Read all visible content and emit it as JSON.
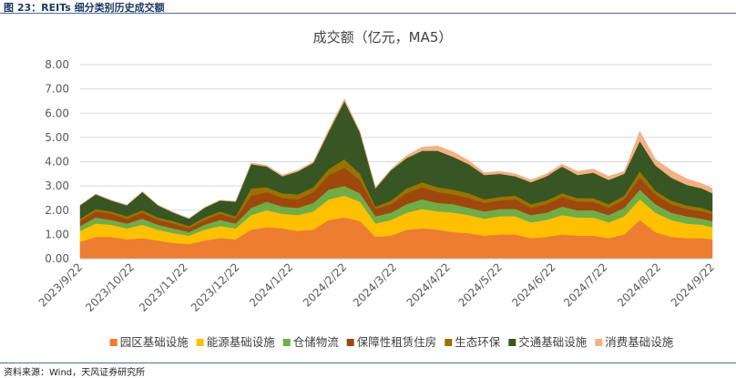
{
  "figure": {
    "caption": "图 23：REITs 细分类别历史成交额",
    "source": "资料来源：Wind，天风证券研究所"
  },
  "chart_data": {
    "type": "area",
    "stacked": true,
    "title": "成交额（亿元，MA5）",
    "xlabel": "",
    "ylabel": "",
    "ylim": [
      0,
      8
    ],
    "yticks": [
      "0.00",
      "1.00",
      "2.00",
      "3.00",
      "4.00",
      "5.00",
      "6.00",
      "7.00",
      "8.00"
    ],
    "grid": "horizontal",
    "legend": "bottom",
    "x_start": "2023/9/22",
    "x_end": "2024/9/22",
    "xtick_labels": [
      "2023/9/22",
      "2023/10/22",
      "2023/11/22",
      "2023/12/22",
      "2024/1/22",
      "2024/2/22",
      "2024/3/22",
      "2024/4/22",
      "2024/5/22",
      "2024/6/22",
      "2024/7/22",
      "2024/8/22",
      "2024/9/22"
    ],
    "x": [
      "2023/9/22",
      "2023/10/1",
      "2023/10/10",
      "2023/10/19",
      "2023/10/28",
      "2023/11/6",
      "2023/11/15",
      "2023/11/24",
      "2023/12/3",
      "2023/12/12",
      "2023/12/21",
      "2023/12/30",
      "2024/1/8",
      "2024/1/17",
      "2024/1/26",
      "2024/2/4",
      "2024/2/13",
      "2024/2/22",
      "2024/3/2",
      "2024/3/11",
      "2024/3/20",
      "2024/3/29",
      "2024/4/7",
      "2024/4/16",
      "2024/4/25",
      "2024/5/4",
      "2024/5/13",
      "2024/5/22",
      "2024/5/31",
      "2024/6/9",
      "2024/6/18",
      "2024/6/27",
      "2024/7/6",
      "2024/7/15",
      "2024/7/24",
      "2024/8/2",
      "2024/8/11",
      "2024/8/20",
      "2024/8/29",
      "2024/9/7",
      "2024/9/16",
      "2024/9/22"
    ],
    "series": [
      {
        "name": "园区基础设施",
        "color": "#ed7d31",
        "values": [
          0.7,
          0.9,
          0.9,
          0.8,
          0.85,
          0.75,
          0.65,
          0.6,
          0.75,
          0.85,
          0.8,
          1.2,
          1.3,
          1.25,
          1.15,
          1.2,
          1.6,
          1.7,
          1.55,
          0.9,
          0.95,
          1.2,
          1.25,
          1.2,
          1.1,
          1.05,
          0.95,
          1.0,
          1.0,
          0.85,
          0.9,
          1.0,
          0.95,
          0.95,
          0.85,
          1.0,
          1.6,
          1.1,
          0.9,
          0.85,
          0.85,
          0.8
        ]
      },
      {
        "name": "能源基础设施",
        "color": "#ffc000",
        "values": [
          0.45,
          0.55,
          0.5,
          0.45,
          0.55,
          0.45,
          0.4,
          0.35,
          0.45,
          0.5,
          0.45,
          0.6,
          0.7,
          0.6,
          0.65,
          0.75,
          0.85,
          0.9,
          0.8,
          0.55,
          0.65,
          0.7,
          0.8,
          0.75,
          0.8,
          0.75,
          0.7,
          0.75,
          0.75,
          0.65,
          0.7,
          0.8,
          0.75,
          0.75,
          0.65,
          0.75,
          0.85,
          0.8,
          0.7,
          0.6,
          0.55,
          0.5
        ]
      },
      {
        "name": "仓储物流",
        "color": "#70ad47",
        "values": [
          0.2,
          0.25,
          0.2,
          0.2,
          0.25,
          0.2,
          0.2,
          0.15,
          0.2,
          0.25,
          0.2,
          0.3,
          0.35,
          0.3,
          0.3,
          0.35,
          0.4,
          0.4,
          0.35,
          0.3,
          0.3,
          0.35,
          0.4,
          0.35,
          0.35,
          0.3,
          0.3,
          0.3,
          0.3,
          0.3,
          0.3,
          0.35,
          0.3,
          0.3,
          0.3,
          0.35,
          0.4,
          0.35,
          0.3,
          0.3,
          0.25,
          0.25
        ]
      },
      {
        "name": "保障性租赁住房",
        "color": "#9e480e",
        "values": [
          0.2,
          0.25,
          0.25,
          0.2,
          0.25,
          0.2,
          0.2,
          0.15,
          0.2,
          0.25,
          0.2,
          0.5,
          0.4,
          0.35,
          0.35,
          0.45,
          0.6,
          0.75,
          0.55,
          0.3,
          0.35,
          0.45,
          0.5,
          0.45,
          0.4,
          0.4,
          0.35,
          0.35,
          0.4,
          0.3,
          0.35,
          0.4,
          0.35,
          0.35,
          0.3,
          0.35,
          0.5,
          0.4,
          0.35,
          0.3,
          0.3,
          0.3
        ]
      },
      {
        "name": "生态环保",
        "color": "#997300",
        "values": [
          0.1,
          0.1,
          0.1,
          0.1,
          0.1,
          0.1,
          0.1,
          0.1,
          0.1,
          0.1,
          0.1,
          0.3,
          0.2,
          0.2,
          0.2,
          0.2,
          0.25,
          0.35,
          0.25,
          0.1,
          0.15,
          0.2,
          0.2,
          0.2,
          0.2,
          0.2,
          0.15,
          0.15,
          0.15,
          0.15,
          0.15,
          0.15,
          0.15,
          0.15,
          0.15,
          0.15,
          0.25,
          0.15,
          0.15,
          0.15,
          0.15,
          0.1
        ]
      },
      {
        "name": "交通基础设施",
        "color": "#375623",
        "values": [
          0.55,
          0.6,
          0.45,
          0.45,
          0.75,
          0.5,
          0.35,
          0.3,
          0.4,
          0.45,
          0.6,
          1.0,
          0.85,
          0.7,
          0.95,
          1.0,
          1.55,
          2.4,
          1.7,
          0.75,
          1.25,
          1.25,
          1.3,
          1.5,
          1.35,
          1.2,
          1.0,
          0.95,
          0.8,
          0.9,
          1.0,
          1.1,
          0.95,
          1.05,
          1.0,
          0.9,
          1.25,
          1.05,
          0.95,
          0.85,
          0.8,
          0.75
        ]
      },
      {
        "name": "消费基础设施",
        "color": "#f4b183",
        "values": [
          0.02,
          0.02,
          0.02,
          0.02,
          0.02,
          0.02,
          0.02,
          0.02,
          0.02,
          0.02,
          0.02,
          0.05,
          0.05,
          0.05,
          0.05,
          0.05,
          0.08,
          0.1,
          0.05,
          0.05,
          0.05,
          0.1,
          0.15,
          0.2,
          0.2,
          0.15,
          0.1,
          0.1,
          0.1,
          0.1,
          0.1,
          0.1,
          0.15,
          0.15,
          0.15,
          0.1,
          0.4,
          0.25,
          0.3,
          0.25,
          0.2,
          0.2
        ]
      }
    ]
  }
}
